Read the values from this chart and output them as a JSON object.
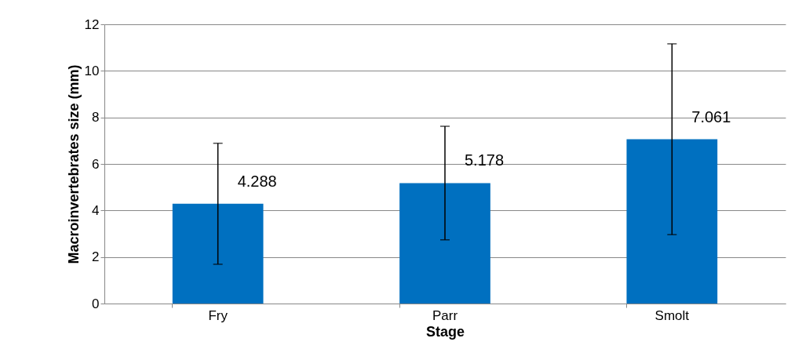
{
  "chart_data": {
    "type": "bar",
    "xlabel": "Stage",
    "ylabel": "Macroinvertebrates size (mm)",
    "categories": [
      "Fry",
      "Parr",
      "Smolt"
    ],
    "values": [
      4.288,
      5.178,
      7.061
    ],
    "errors": [
      2.6,
      2.44,
      4.1
    ],
    "color": "#0070c0",
    "ylim": [
      0,
      12
    ],
    "yticks": [
      0,
      2,
      4,
      6,
      8,
      10,
      12
    ],
    "grid": "y",
    "data_labels": true
  }
}
